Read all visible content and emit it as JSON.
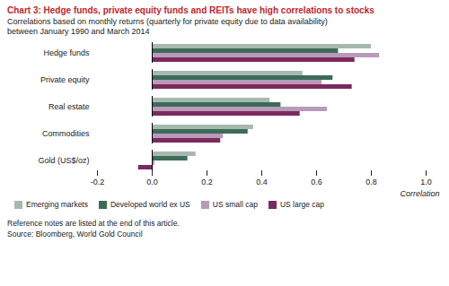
{
  "chart_data": {
    "type": "bar",
    "orientation": "horizontal",
    "title": "Chart 3: Hedge funds, private equity funds and REITs have high correlations to stocks",
    "subtitle": [
      "Correlations based on monthly returns (quarterly for private equity due to data availability)",
      "between January 1990 and March 2014"
    ],
    "notes": [
      "Reference notes are listed at the end of this article.",
      "Source: Bloomberg, World Gold Council"
    ],
    "x_label": "Correlation",
    "categories": [
      "Hedge funds",
      "Private equity",
      "Real estate",
      "Commodities",
      "Gold (US$/oz)"
    ],
    "series": [
      {
        "name": "Emerging markets",
        "color": "#a7b9ae",
        "values": [
          0.8,
          0.55,
          0.43,
          0.37,
          0.16
        ]
      },
      {
        "name": "Developed world ex US",
        "color": "#3e6b59",
        "values": [
          0.68,
          0.66,
          0.47,
          0.35,
          0.13
        ]
      },
      {
        "name": "US small cap",
        "color": "#b89bb9",
        "values": [
          0.83,
          0.62,
          0.64,
          0.26,
          0.01
        ]
      },
      {
        "name": "US large cap",
        "color": "#7b2a5f",
        "values": [
          0.74,
          0.73,
          0.54,
          0.25,
          -0.05
        ]
      }
    ],
    "xlim": [
      -0.2,
      1.0
    ],
    "xticks": [
      -0.2,
      {
        "value": 0,
        "label": "0.0"
      },
      0.2,
      0.4,
      0.6,
      0.8,
      {
        "value": 1,
        "label": "1.0"
      }
    ],
    "grid": false,
    "legend": "bottom"
  }
}
